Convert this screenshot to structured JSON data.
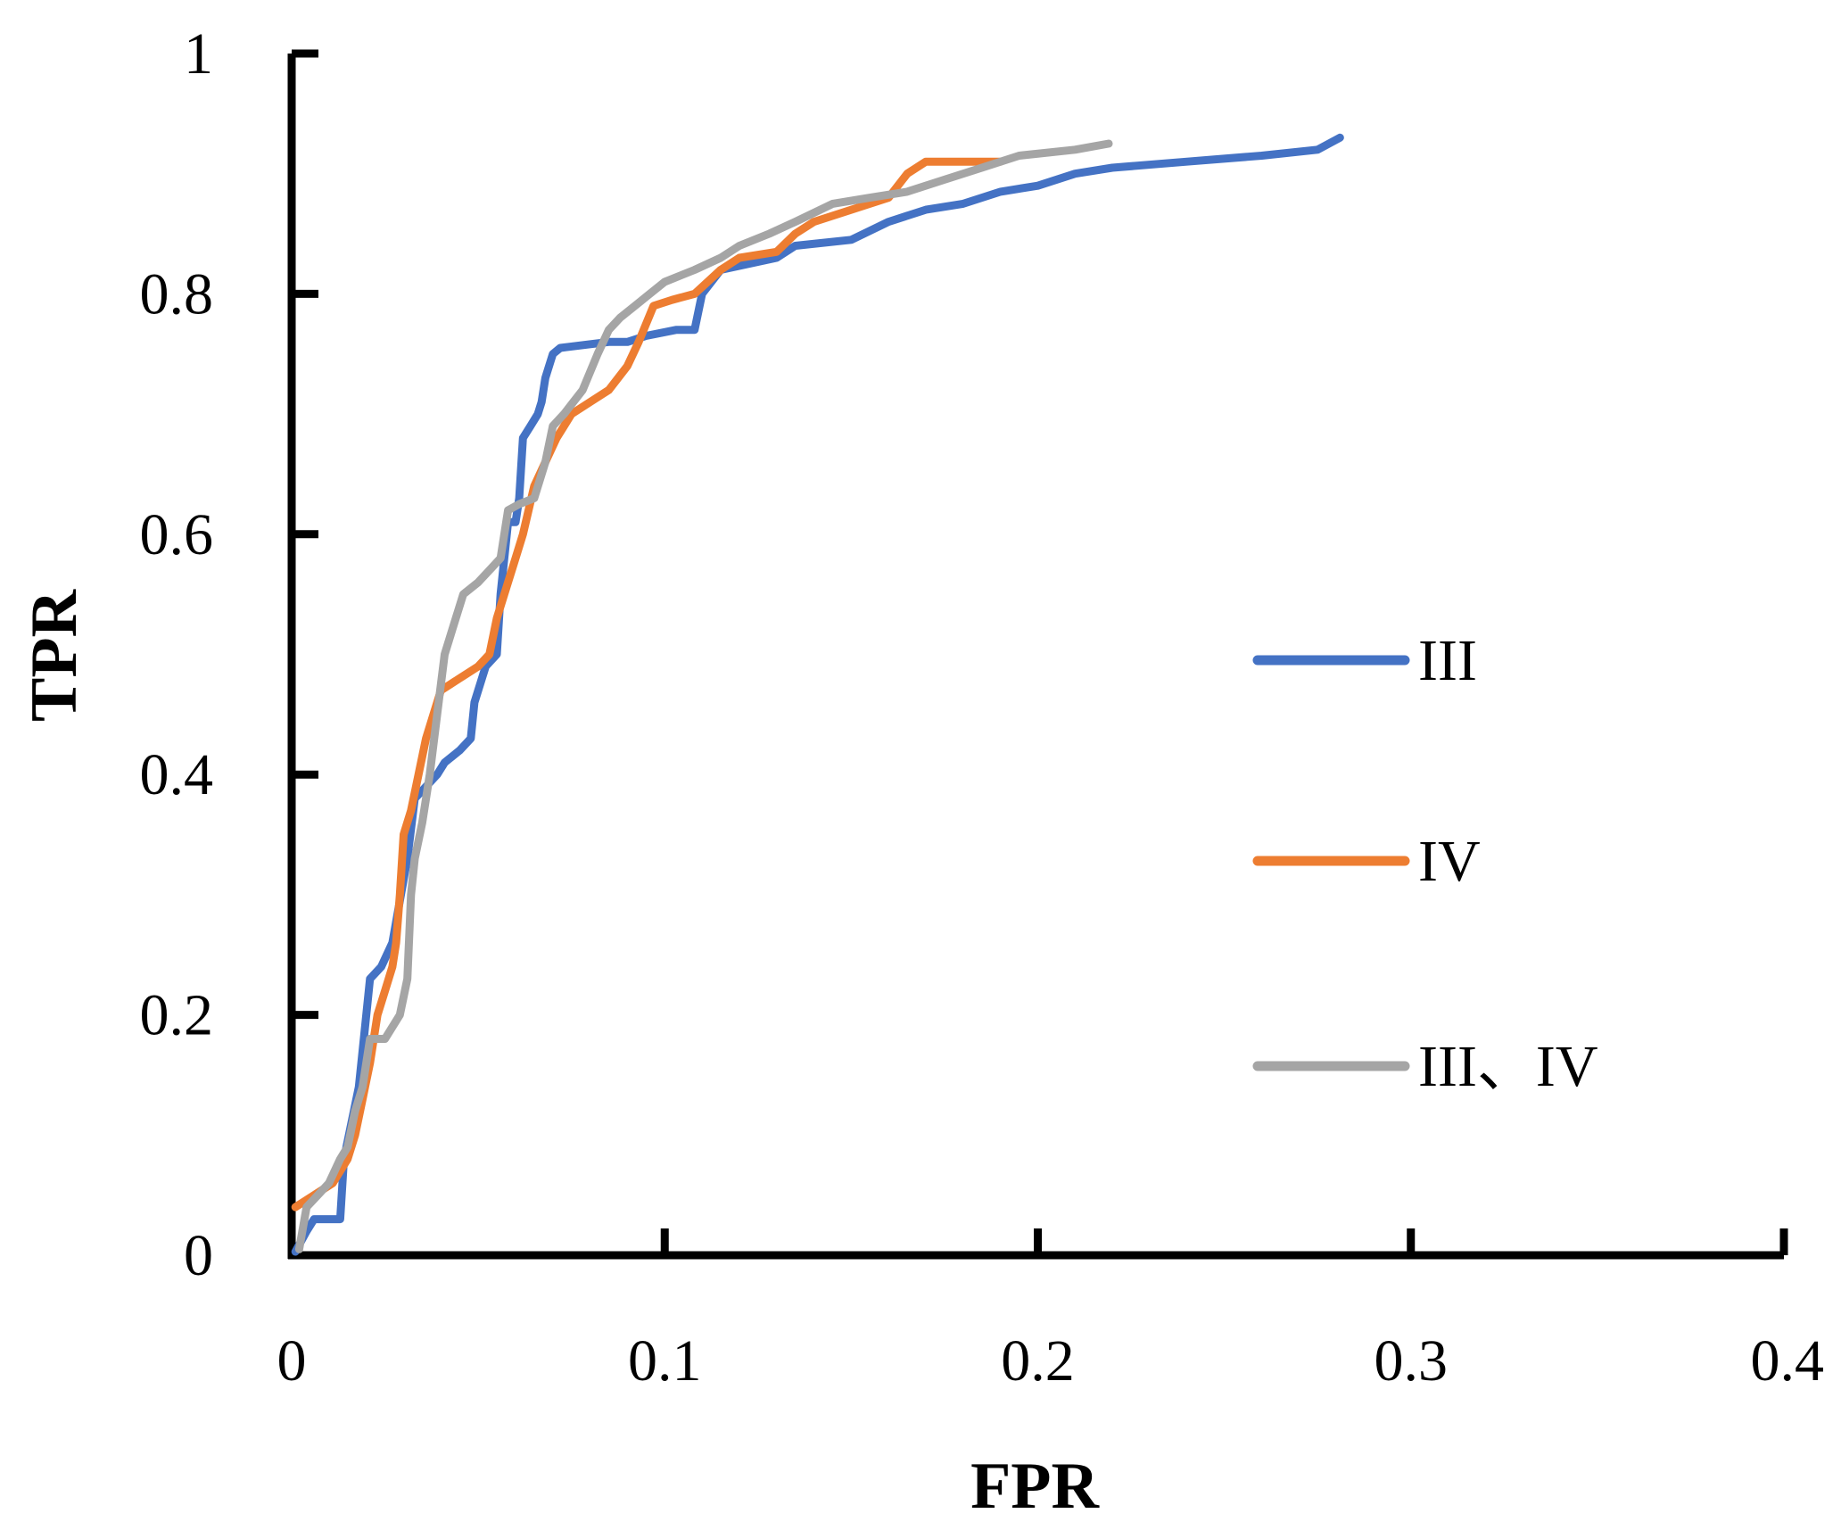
{
  "chart_data": {
    "type": "line",
    "xlabel": "FPR",
    "ylabel": "TPR",
    "xlim": [
      0,
      0.4
    ],
    "ylim": [
      0,
      1
    ],
    "x_ticks": [
      0,
      0.1,
      0.2,
      0.3,
      0.4
    ],
    "x_tick_labels": [
      "0",
      "0.1",
      "0.2",
      "0.3",
      "0.4"
    ],
    "y_ticks": [
      0,
      0.2,
      0.4,
      0.6,
      0.8,
      1
    ],
    "y_tick_labels": [
      "0",
      "0.2",
      "0.4",
      "0.6",
      "0.8",
      "1"
    ],
    "grid": false,
    "legend_position": "right",
    "series": [
      {
        "name": "III",
        "color": "#4472C4",
        "x": [
          0.001,
          0.004,
          0.006,
          0.013,
          0.014,
          0.018,
          0.019,
          0.021,
          0.024,
          0.027,
          0.031,
          0.033,
          0.036,
          0.039,
          0.041,
          0.045,
          0.048,
          0.049,
          0.052,
          0.055,
          0.056,
          0.058,
          0.06,
          0.061,
          0.062,
          0.064,
          0.066,
          0.067,
          0.068,
          0.069,
          0.07,
          0.072,
          0.085,
          0.09,
          0.095,
          0.103,
          0.108,
          0.11,
          0.115,
          0.13,
          0.135,
          0.15,
          0.16,
          0.17,
          0.18,
          0.19,
          0.2,
          0.21,
          0.22,
          0.24,
          0.26,
          0.275,
          0.281
        ],
        "y": [
          0.003,
          0.02,
          0.03,
          0.03,
          0.08,
          0.14,
          0.17,
          0.23,
          0.24,
          0.26,
          0.33,
          0.38,
          0.39,
          0.4,
          0.41,
          0.42,
          0.43,
          0.46,
          0.49,
          0.5,
          0.55,
          0.61,
          0.61,
          0.63,
          0.68,
          0.69,
          0.7,
          0.71,
          0.73,
          0.74,
          0.75,
          0.755,
          0.76,
          0.76,
          0.765,
          0.77,
          0.77,
          0.8,
          0.82,
          0.83,
          0.84,
          0.845,
          0.86,
          0.87,
          0.875,
          0.885,
          0.89,
          0.9,
          0.905,
          0.91,
          0.915,
          0.92,
          0.93
        ]
      },
      {
        "name": "IV",
        "color": "#ED7D31",
        "x": [
          0.001,
          0.006,
          0.011,
          0.015,
          0.017,
          0.019,
          0.021,
          0.023,
          0.025,
          0.027,
          0.028,
          0.029,
          0.03,
          0.032,
          0.034,
          0.036,
          0.038,
          0.04,
          0.045,
          0.05,
          0.053,
          0.055,
          0.057,
          0.06,
          0.062,
          0.065,
          0.068,
          0.071,
          0.075,
          0.08,
          0.085,
          0.09,
          0.093,
          0.097,
          0.102,
          0.108,
          0.115,
          0.12,
          0.13,
          0.135,
          0.14,
          0.15,
          0.155,
          0.16,
          0.165,
          0.17,
          0.19
        ],
        "y": [
          0.04,
          0.05,
          0.06,
          0.08,
          0.1,
          0.13,
          0.16,
          0.2,
          0.22,
          0.24,
          0.26,
          0.3,
          0.35,
          0.37,
          0.4,
          0.43,
          0.45,
          0.47,
          0.48,
          0.49,
          0.5,
          0.53,
          0.55,
          0.58,
          0.6,
          0.64,
          0.66,
          0.68,
          0.7,
          0.71,
          0.72,
          0.74,
          0.76,
          0.79,
          0.795,
          0.8,
          0.82,
          0.83,
          0.835,
          0.85,
          0.86,
          0.87,
          0.875,
          0.88,
          0.9,
          0.91,
          0.91
        ]
      },
      {
        "name": "III、IV",
        "color": "#A5A5A5",
        "x": [
          0.002,
          0.004,
          0.007,
          0.01,
          0.013,
          0.015,
          0.017,
          0.019,
          0.021,
          0.025,
          0.029,
          0.031,
          0.032,
          0.033,
          0.035,
          0.037,
          0.039,
          0.041,
          0.043,
          0.046,
          0.05,
          0.053,
          0.056,
          0.058,
          0.061,
          0.065,
          0.068,
          0.07,
          0.073,
          0.078,
          0.082,
          0.085,
          0.088,
          0.092,
          0.096,
          0.1,
          0.108,
          0.115,
          0.12,
          0.128,
          0.135,
          0.145,
          0.155,
          0.165,
          0.175,
          0.185,
          0.195,
          0.21,
          0.219
        ],
        "y": [
          0.005,
          0.04,
          0.05,
          0.06,
          0.08,
          0.09,
          0.12,
          0.14,
          0.18,
          0.18,
          0.2,
          0.23,
          0.3,
          0.33,
          0.36,
          0.4,
          0.45,
          0.5,
          0.52,
          0.55,
          0.56,
          0.57,
          0.58,
          0.62,
          0.625,
          0.63,
          0.66,
          0.69,
          0.7,
          0.72,
          0.75,
          0.77,
          0.78,
          0.79,
          0.8,
          0.81,
          0.82,
          0.83,
          0.84,
          0.85,
          0.86,
          0.875,
          0.88,
          0.885,
          0.895,
          0.905,
          0.915,
          0.92,
          0.925
        ]
      }
    ]
  }
}
